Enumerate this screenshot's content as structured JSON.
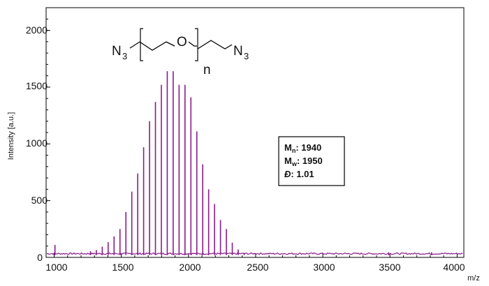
{
  "chart_data": {
    "type": "bar",
    "xlabel": "m/z",
    "ylabel": "Intensity [a.u.]",
    "xlim": [
      940,
      4050
    ],
    "ylim": [
      0,
      2200
    ],
    "x_ticks": [
      "1000",
      "1500",
      "2000",
      "2500",
      "3000",
      "3500",
      "4000"
    ],
    "y_ticks": [
      "0",
      "500",
      "1000",
      "1500",
      "2000"
    ],
    "baseline_level": 30,
    "color": "#8B1A8B",
    "peaks": {
      "x": [
        1006,
        1270,
        1314,
        1358,
        1402,
        1446,
        1490,
        1534,
        1578,
        1622,
        1666,
        1710,
        1754,
        1798,
        1842,
        1886,
        1930,
        1974,
        2018,
        2062,
        2106,
        2150,
        2194,
        2238,
        2282,
        2326,
        2370,
        2414,
        3490,
        3810
      ],
      "y": [
        110,
        55,
        65,
        95,
        135,
        185,
        250,
        400,
        580,
        740,
        970,
        1200,
        1370,
        1520,
        1640,
        1640,
        1520,
        1520,
        1410,
        1110,
        820,
        600,
        470,
        330,
        250,
        130,
        70,
        40,
        45,
        45
      ]
    }
  },
  "structure": {
    "left_group": "N",
    "left_sub": "3",
    "oxygen": "O",
    "repeat": "n",
    "right_group": "N",
    "right_sub": "3"
  },
  "stats": {
    "mn_symbol": "M",
    "mn_sub": "n",
    "mn_value": ": 1940",
    "mw_symbol": "M",
    "mw_sub": "w",
    "mw_value": ": 1950",
    "d_symbol": "Đ",
    "d_value": ": 1.01"
  }
}
